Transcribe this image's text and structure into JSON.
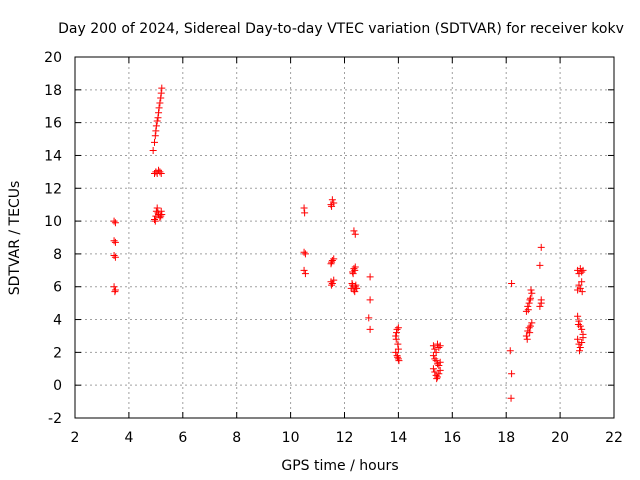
{
  "chart_data": {
    "type": "scatter",
    "title": "Day 200 of 2024, Sidereal Day-to-day VTEC variation (SDTVAR) for receiver kokv",
    "xlabel": "GPS time / hours",
    "ylabel": "SDTVAR / TECUs",
    "xlim": [
      2,
      22
    ],
    "ylim": [
      -2,
      20
    ],
    "xticks": [
      2,
      4,
      6,
      8,
      10,
      12,
      14,
      16,
      18,
      20,
      22
    ],
    "yticks": [
      -2,
      0,
      2,
      4,
      6,
      8,
      10,
      12,
      14,
      16,
      18,
      20
    ],
    "xtick_labels": [
      "2",
      "4",
      "6",
      "8",
      "10",
      "12",
      "14",
      "16",
      "18",
      "20",
      "22"
    ],
    "ytick_labels": [
      "-2",
      "0",
      "2",
      "4",
      "6",
      "8",
      "10",
      "12",
      "14",
      "16",
      "18",
      "20"
    ],
    "grid": true,
    "marker": "plus",
    "series": [
      {
        "name": "SDTVAR",
        "color": "#ff0000",
        "points": [
          [
            3.45,
            10.0
          ],
          [
            3.5,
            9.9
          ],
          [
            3.45,
            8.8
          ],
          [
            3.5,
            8.7
          ],
          [
            3.45,
            7.9
          ],
          [
            3.5,
            7.8
          ],
          [
            3.45,
            6.0
          ],
          [
            3.5,
            5.8
          ],
          [
            3.48,
            5.7
          ],
          [
            4.95,
            10.1
          ],
          [
            5.0,
            10.3
          ],
          [
            5.02,
            10.6
          ],
          [
            5.05,
            10.8
          ],
          [
            5.1,
            10.4
          ],
          [
            5.15,
            10.2
          ],
          [
            5.2,
            10.6
          ],
          [
            5.22,
            10.4
          ],
          [
            4.98,
            10.0
          ],
          [
            5.08,
            10.5
          ],
          [
            5.18,
            10.3
          ],
          [
            4.95,
            12.9
          ],
          [
            5.0,
            13.0
          ],
          [
            5.05,
            12.9
          ],
          [
            5.1,
            13.1
          ],
          [
            5.15,
            13.0
          ],
          [
            5.2,
            12.9
          ],
          [
            4.9,
            14.3
          ],
          [
            4.95,
            14.8
          ],
          [
            4.98,
            15.2
          ],
          [
            5.0,
            15.5
          ],
          [
            5.02,
            15.8
          ],
          [
            5.05,
            16.1
          ],
          [
            5.08,
            16.3
          ],
          [
            5.1,
            16.6
          ],
          [
            5.12,
            16.9
          ],
          [
            5.15,
            17.2
          ],
          [
            5.18,
            17.5
          ],
          [
            5.2,
            17.8
          ],
          [
            5.22,
            18.1
          ],
          [
            10.5,
            10.8
          ],
          [
            10.52,
            10.5
          ],
          [
            10.5,
            8.1
          ],
          [
            10.55,
            8.0
          ],
          [
            10.5,
            7.0
          ],
          [
            10.55,
            6.8
          ],
          [
            11.5,
            11.0
          ],
          [
            11.55,
            11.3
          ],
          [
            11.6,
            11.1
          ],
          [
            11.52,
            10.9
          ],
          [
            11.5,
            7.4
          ],
          [
            11.55,
            7.6
          ],
          [
            11.6,
            7.7
          ],
          [
            11.52,
            7.5
          ],
          [
            11.5,
            6.3
          ],
          [
            11.55,
            6.2
          ],
          [
            11.6,
            6.4
          ],
          [
            11.52,
            6.1
          ],
          [
            12.35,
            9.4
          ],
          [
            12.4,
            9.2
          ],
          [
            12.3,
            6.9
          ],
          [
            12.35,
            7.1
          ],
          [
            12.4,
            7.2
          ],
          [
            12.32,
            6.8
          ],
          [
            12.38,
            7.0
          ],
          [
            12.25,
            5.9
          ],
          [
            12.3,
            6.1
          ],
          [
            12.35,
            5.8
          ],
          [
            12.4,
            6.0
          ],
          [
            12.45,
            5.9
          ],
          [
            12.28,
            6.2
          ],
          [
            12.38,
            5.7
          ],
          [
            12.42,
            6.1
          ],
          [
            12.95,
            6.6
          ],
          [
            12.95,
            5.2
          ],
          [
            12.9,
            4.1
          ],
          [
            12.95,
            3.4
          ],
          [
            13.9,
            3.0
          ],
          [
            13.95,
            3.4
          ],
          [
            14.0,
            3.5
          ],
          [
            13.92,
            2.8
          ],
          [
            13.98,
            2.5
          ],
          [
            14.0,
            2.2
          ],
          [
            13.9,
            2.0
          ],
          [
            13.95,
            1.8
          ],
          [
            14.0,
            1.6
          ],
          [
            14.02,
            1.5
          ],
          [
            13.97,
            1.7
          ],
          [
            13.93,
            3.2
          ],
          [
            15.3,
            2.4
          ],
          [
            15.35,
            2.2
          ],
          [
            15.4,
            2.0
          ],
          [
            15.45,
            2.5
          ],
          [
            15.5,
            2.3
          ],
          [
            15.55,
            2.4
          ],
          [
            15.3,
            1.8
          ],
          [
            15.35,
            1.6
          ],
          [
            15.4,
            1.5
          ],
          [
            15.45,
            1.3
          ],
          [
            15.5,
            1.2
          ],
          [
            15.55,
            1.4
          ],
          [
            15.3,
            1.0
          ],
          [
            15.35,
            0.8
          ],
          [
            15.4,
            0.6
          ],
          [
            15.45,
            0.5
          ],
          [
            15.5,
            0.7
          ],
          [
            15.55,
            0.9
          ],
          [
            15.42,
            0.4
          ],
          [
            18.2,
            6.2
          ],
          [
            18.15,
            2.1
          ],
          [
            18.2,
            0.7
          ],
          [
            18.18,
            -0.8
          ],
          [
            18.75,
            4.5
          ],
          [
            18.8,
            4.8
          ],
          [
            18.85,
            5.0
          ],
          [
            18.9,
            5.3
          ],
          [
            18.95,
            5.6
          ],
          [
            18.82,
            4.6
          ],
          [
            18.88,
            5.2
          ],
          [
            18.92,
            5.8
          ],
          [
            18.75,
            3.0
          ],
          [
            18.8,
            3.3
          ],
          [
            18.85,
            3.5
          ],
          [
            18.9,
            3.6
          ],
          [
            18.95,
            3.8
          ],
          [
            18.78,
            2.8
          ],
          [
            18.87,
            3.2
          ],
          [
            19.3,
            8.4
          ],
          [
            19.25,
            7.3
          ],
          [
            19.3,
            5.2
          ],
          [
            19.25,
            4.8
          ],
          [
            19.3,
            5.0
          ],
          [
            20.65,
            7.0
          ],
          [
            20.7,
            6.8
          ],
          [
            20.75,
            7.1
          ],
          [
            20.8,
            6.9
          ],
          [
            20.85,
            7.0
          ],
          [
            20.65,
            5.8
          ],
          [
            20.7,
            6.1
          ],
          [
            20.75,
            5.9
          ],
          [
            20.8,
            6.3
          ],
          [
            20.82,
            5.7
          ],
          [
            20.65,
            4.2
          ],
          [
            20.7,
            3.9
          ],
          [
            20.75,
            3.6
          ],
          [
            20.8,
            3.4
          ],
          [
            20.85,
            3.1
          ],
          [
            20.68,
            3.7
          ],
          [
            20.65,
            2.8
          ],
          [
            20.7,
            2.5
          ],
          [
            20.75,
            2.3
          ],
          [
            20.8,
            2.6
          ],
          [
            20.85,
            2.9
          ],
          [
            20.72,
            2.1
          ]
        ]
      }
    ]
  }
}
